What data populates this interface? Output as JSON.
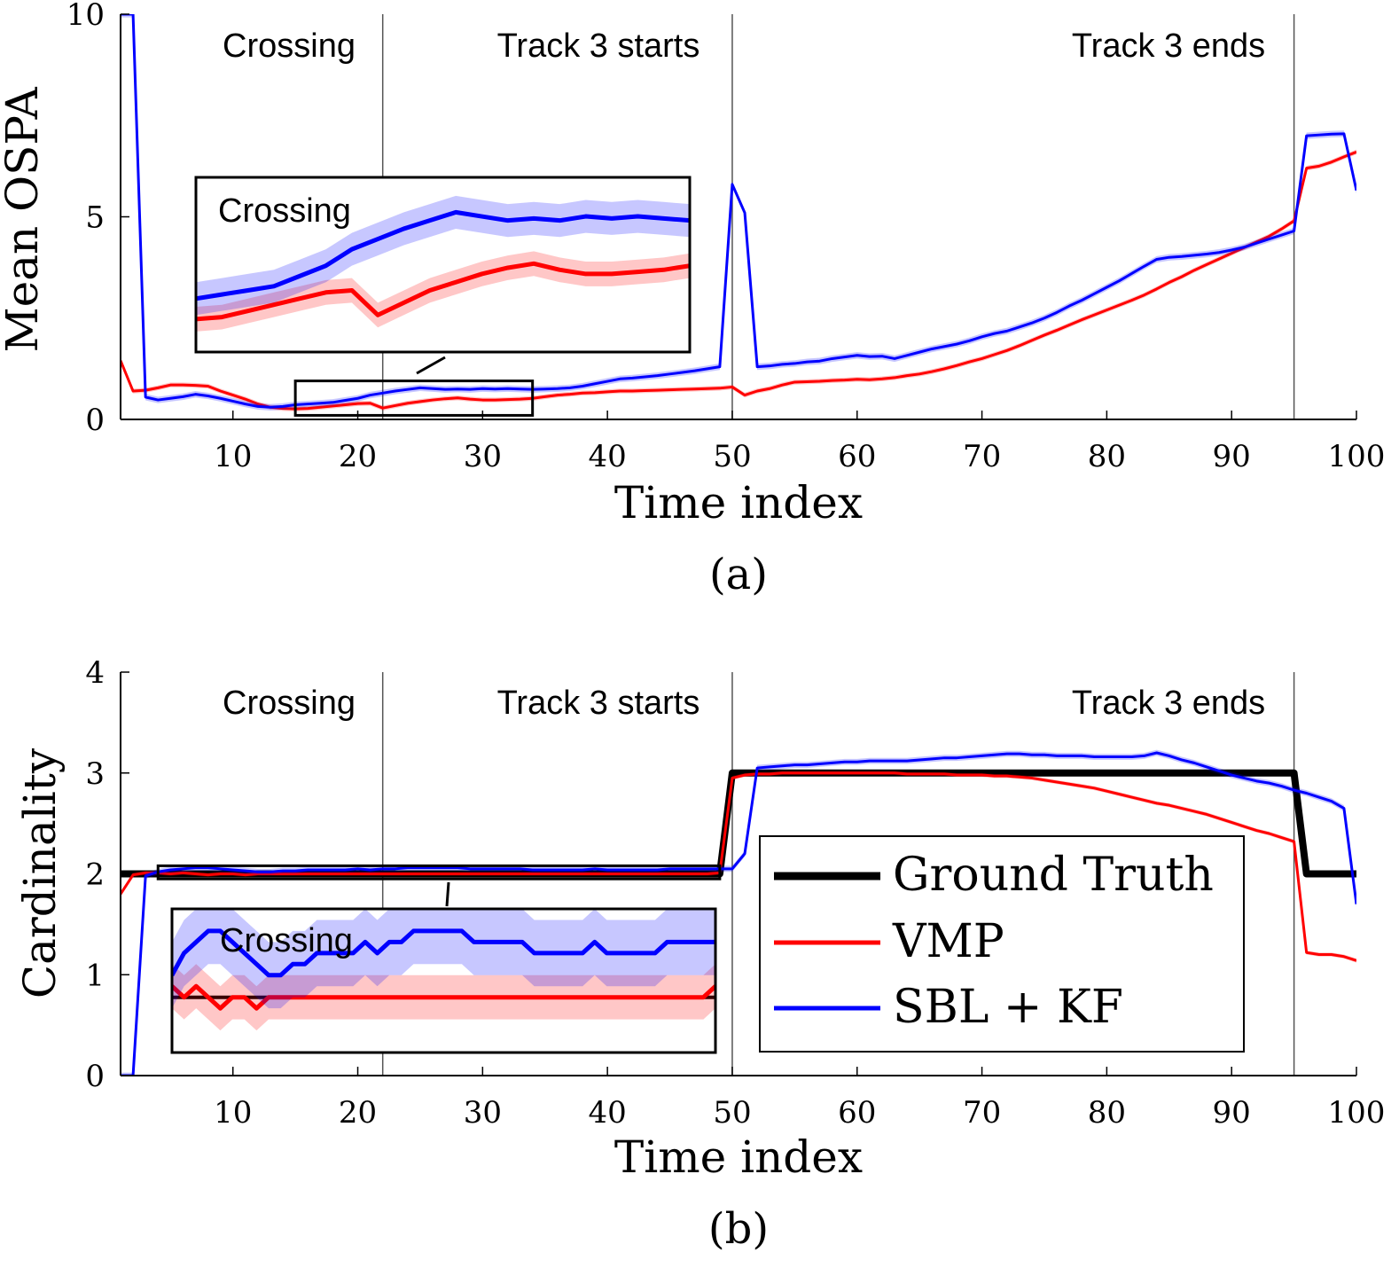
{
  "chart_data": [
    {
      "type": "line",
      "caption": "(a)",
      "xlabel": "Time index",
      "ylabel": "Mean OSPA",
      "xlim": [
        1,
        100
      ],
      "ylim": [
        0,
        10
      ],
      "xticks": [
        10,
        20,
        30,
        40,
        50,
        60,
        70,
        80,
        90,
        100
      ],
      "yticks": [
        0,
        5,
        10
      ],
      "xtick_labels": [
        "10",
        "20",
        "30",
        "40",
        "50",
        "60",
        "70",
        "80",
        "90",
        "100"
      ],
      "ytick_labels": [
        "0",
        "5",
        "10"
      ],
      "event_lines": [
        22,
        50,
        95
      ],
      "annotations": [
        "Crossing",
        "Track 3 starts",
        "Track 3 ends"
      ],
      "inset": {
        "title": "Crossing",
        "x_range": [
          15,
          34
        ],
        "y_range": [
          0.1,
          0.95
        ]
      },
      "series": [
        {
          "name": "VMP",
          "color": "#ff0000",
          "band": 0.06,
          "values": [
            1.45,
            0.7,
            0.72,
            0.78,
            0.85,
            0.85,
            0.84,
            0.82,
            0.7,
            0.6,
            0.5,
            0.38,
            0.3,
            0.27,
            0.26,
            0.27,
            0.3,
            0.33,
            0.36,
            0.39,
            0.4,
            0.28,
            0.34,
            0.4,
            0.44,
            0.48,
            0.51,
            0.53,
            0.5,
            0.48,
            0.48,
            0.49,
            0.5,
            0.52,
            0.56,
            0.6,
            0.62,
            0.65,
            0.66,
            0.68,
            0.7,
            0.7,
            0.71,
            0.72,
            0.73,
            0.74,
            0.75,
            0.76,
            0.77,
            0.8,
            0.6,
            0.7,
            0.76,
            0.85,
            0.92,
            0.93,
            0.94,
            0.96,
            0.97,
            0.99,
            0.98,
            1.0,
            1.03,
            1.08,
            1.12,
            1.18,
            1.25,
            1.33,
            1.42,
            1.5,
            1.6,
            1.7,
            1.82,
            1.95,
            2.08,
            2.2,
            2.33,
            2.46,
            2.58,
            2.7,
            2.82,
            2.94,
            3.07,
            3.22,
            3.38,
            3.52,
            3.68,
            3.82,
            3.96,
            4.1,
            4.24,
            4.38,
            4.52,
            4.7,
            4.9,
            6.2,
            6.25,
            6.35,
            6.48,
            6.6
          ]
        },
        {
          "name": "SBL + KF",
          "color": "#0000ff",
          "band": 0.08,
          "values": [
            10,
            10,
            0.55,
            0.48,
            0.52,
            0.56,
            0.62,
            0.58,
            0.52,
            0.45,
            0.38,
            0.32,
            0.3,
            0.32,
            0.36,
            0.38,
            0.4,
            0.42,
            0.47,
            0.52,
            0.6,
            0.65,
            0.7,
            0.74,
            0.78,
            0.76,
            0.74,
            0.75,
            0.74,
            0.76,
            0.75,
            0.76,
            0.75,
            0.74,
            0.75,
            0.76,
            0.78,
            0.82,
            0.88,
            0.94,
            1.0,
            1.02,
            1.05,
            1.08,
            1.12,
            1.16,
            1.2,
            1.25,
            1.3,
            5.8,
            5.1,
            1.3,
            1.32,
            1.36,
            1.38,
            1.42,
            1.44,
            1.5,
            1.54,
            1.58,
            1.55,
            1.56,
            1.5,
            1.58,
            1.66,
            1.74,
            1.8,
            1.86,
            1.94,
            2.04,
            2.12,
            2.18,
            2.28,
            2.38,
            2.5,
            2.64,
            2.8,
            2.94,
            3.1,
            3.26,
            3.42,
            3.6,
            3.78,
            3.95,
            4.0,
            4.02,
            4.05,
            4.08,
            4.12,
            4.18,
            4.25,
            4.35,
            4.45,
            4.55,
            4.65,
            7.0,
            7.02,
            7.04,
            7.05,
            5.65
          ]
        }
      ]
    },
    {
      "type": "line",
      "caption": "(b)",
      "xlabel": "Time index",
      "ylabel": "Cardinality",
      "xlim": [
        1,
        100
      ],
      "ylim": [
        0,
        4
      ],
      "xticks": [
        10,
        20,
        30,
        40,
        50,
        60,
        70,
        80,
        90,
        100
      ],
      "yticks": [
        0,
        1,
        2,
        3,
        4
      ],
      "xtick_labels": [
        "10",
        "20",
        "30",
        "40",
        "50",
        "60",
        "70",
        "80",
        "90",
        "100"
      ],
      "ytick_labels": [
        "0",
        "1",
        "2",
        "3",
        "4"
      ],
      "event_lines": [
        22,
        50,
        95
      ],
      "annotations": [
        "Crossing",
        "Track 3 starts",
        "Track 3 ends"
      ],
      "inset": {
        "title": "Crossing",
        "x_range": [
          4,
          49
        ],
        "y_range": [
          1.95,
          2.08
        ]
      },
      "legend": {
        "placement": "lower-right",
        "entries": [
          "Ground Truth",
          "VMP",
          "SBL + KF"
        ]
      },
      "series": [
        {
          "name": "Ground Truth",
          "color": "#000000",
          "band": 0,
          "values": [
            2,
            2,
            2,
            2,
            2,
            2,
            2,
            2,
            2,
            2,
            2,
            2,
            2,
            2,
            2,
            2,
            2,
            2,
            2,
            2,
            2,
            2,
            2,
            2,
            2,
            2,
            2,
            2,
            2,
            2,
            2,
            2,
            2,
            2,
            2,
            2,
            2,
            2,
            2,
            2,
            2,
            2,
            2,
            2,
            2,
            2,
            2,
            2,
            2,
            3,
            3,
            3,
            3,
            3,
            3,
            3,
            3,
            3,
            3,
            3,
            3,
            3,
            3,
            3,
            3,
            3,
            3,
            3,
            3,
            3,
            3,
            3,
            3,
            3,
            3,
            3,
            3,
            3,
            3,
            3,
            3,
            3,
            3,
            3,
            3,
            3,
            3,
            3,
            3,
            3,
            3,
            3,
            3,
            3,
            3,
            2,
            2,
            2,
            2,
            2
          ]
        },
        {
          "name": "VMP",
          "color": "#ff0000",
          "band": 0.02,
          "values": [
            1.8,
            1.99,
            2.01,
            2.01,
            2.0,
            2.01,
            2.0,
            1.99,
            2.0,
            2.0,
            1.99,
            2.0,
            2.0,
            2.0,
            2.0,
            2.0,
            2.0,
            2.0,
            2.0,
            2.0,
            2.0,
            2.0,
            2.0,
            2.0,
            2.0,
            2.0,
            2.0,
            2.0,
            2.0,
            2.0,
            2.0,
            2.0,
            2.0,
            2.0,
            2.0,
            2.0,
            2.0,
            2.0,
            2.0,
            2.0,
            2.0,
            2.0,
            2.0,
            2.0,
            2.0,
            2.0,
            2.0,
            2.0,
            2.01,
            2.95,
            2.98,
            2.99,
            2.99,
            3.0,
            3.0,
            3.0,
            3.0,
            3.0,
            3.0,
            3.0,
            3.0,
            3.0,
            3.0,
            2.99,
            2.99,
            2.99,
            2.99,
            2.98,
            2.98,
            2.98,
            2.97,
            2.97,
            2.96,
            2.95,
            2.93,
            2.91,
            2.89,
            2.87,
            2.85,
            2.82,
            2.79,
            2.76,
            2.73,
            2.7,
            2.68,
            2.65,
            2.62,
            2.59,
            2.55,
            2.51,
            2.47,
            2.43,
            2.4,
            2.36,
            2.32,
            1.22,
            1.2,
            1.2,
            1.18,
            1.14
          ]
        },
        {
          "name": "SBL + KF",
          "color": "#0000ff",
          "band": 0.03,
          "values": [
            0,
            0,
            1.98,
            2.02,
            2.04,
            2.05,
            2.06,
            2.06,
            2.05,
            2.04,
            2.03,
            2.02,
            2.02,
            2.03,
            2.03,
            2.04,
            2.04,
            2.04,
            2.04,
            2.05,
            2.04,
            2.05,
            2.05,
            2.06,
            2.06,
            2.06,
            2.06,
            2.06,
            2.05,
            2.05,
            2.05,
            2.05,
            2.05,
            2.04,
            2.04,
            2.04,
            2.04,
            2.04,
            2.05,
            2.04,
            2.04,
            2.04,
            2.04,
            2.04,
            2.05,
            2.05,
            2.05,
            2.05,
            2.05,
            2.05,
            2.2,
            3.05,
            3.06,
            3.07,
            3.08,
            3.08,
            3.09,
            3.1,
            3.11,
            3.11,
            3.12,
            3.12,
            3.12,
            3.12,
            3.13,
            3.14,
            3.15,
            3.15,
            3.16,
            3.17,
            3.18,
            3.19,
            3.19,
            3.18,
            3.18,
            3.17,
            3.17,
            3.17,
            3.16,
            3.16,
            3.16,
            3.16,
            3.17,
            3.2,
            3.17,
            3.13,
            3.1,
            3.06,
            3.02,
            2.98,
            2.95,
            2.92,
            2.9,
            2.87,
            2.83,
            2.8,
            2.76,
            2.72,
            2.65,
            1.7
          ]
        }
      ]
    }
  ]
}
